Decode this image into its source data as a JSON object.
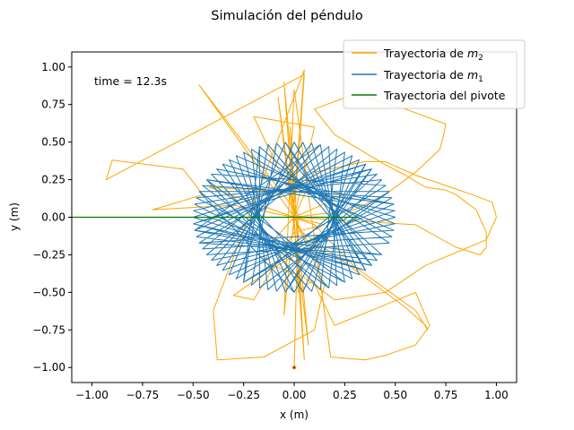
{
  "chart_data": {
    "type": "line",
    "title": "Simulación del péndulo",
    "xlabel": "x (m)",
    "ylabel": "y (m)",
    "xlim": [
      -1.1,
      1.1
    ],
    "ylim": [
      -1.1,
      1.1
    ],
    "xticks": [
      -1.0,
      -0.75,
      -0.5,
      -0.25,
      0.0,
      0.25,
      0.5,
      0.75,
      1.0
    ],
    "yticks": [
      -1.0,
      -0.75,
      -0.5,
      -0.25,
      0.0,
      0.25,
      0.5,
      0.75,
      1.0
    ],
    "xtick_labels": [
      "−1.00",
      "−0.75",
      "−0.50",
      "−0.25",
      "0.00",
      "0.25",
      "0.50",
      "0.75",
      "1.00"
    ],
    "ytick_labels": [
      "−1.00",
      "−0.75",
      "−0.50",
      "−0.25",
      "0.00",
      "0.25",
      "0.50",
      "0.75",
      "1.00"
    ],
    "grid": false,
    "legend_position": "top-right",
    "annotation": "time = 12.3s",
    "colors": {
      "m2": "#ffa500",
      "m1": "#1f77b4",
      "pivot": "#008000",
      "marker": "#ff0000"
    },
    "series": [
      {
        "name": "Trayectoria de m2",
        "legend_base": "Trayectoria de ",
        "legend_math": "m",
        "legend_sub": "2",
        "color": "#ffa500",
        "x": [
          0.0,
          0.02,
          -0.47,
          0.0,
          0.05,
          -0.93,
          -0.9,
          -0.55,
          -0.45,
          -0.7,
          -0.3,
          0.0,
          0.1,
          -0.2,
          0.0,
          0.05,
          -0.4,
          -0.38,
          -0.15,
          0.1,
          0.15,
          0.0,
          0.0,
          0.3,
          0.45,
          0.6,
          0.72,
          0.74,
          0.75,
          0.55,
          0.3,
          0.1,
          0.2,
          0.45,
          0.55,
          0.65,
          0.75,
          0.8,
          0.9,
          0.95,
          0.95,
          0.92,
          0.8,
          0.6,
          0.0,
          -0.1,
          -0.15,
          0.05,
          0.2,
          0.45,
          0.65,
          0.95,
          1.0,
          0.98,
          0.88,
          0.6,
          0.45,
          0.35,
          0.1,
          0.0,
          0.04,
          0.25,
          0.4,
          0.55,
          0.65,
          0.66,
          0.6,
          0.3,
          0.1,
          0.0,
          0.08,
          -0.12,
          -0.3,
          -0.2,
          0.0,
          0.15,
          0.0,
          0.25,
          -0.42,
          0.0,
          -0.05,
          0.0,
          0.18,
          0.35,
          0.45,
          0.6,
          0.67,
          0.6,
          0.42,
          0.2,
          0.09,
          0.02,
          0.0,
          -0.02,
          0.0,
          0.05,
          -0.05,
          0.07,
          -0.08,
          0.0,
          0.0
        ],
        "y": [
          -1.0,
          0.02,
          0.88,
          0.0,
          0.95,
          0.25,
          0.38,
          0.32,
          0.15,
          0.05,
          0.08,
          0.0,
          0.6,
          0.67,
          0.1,
          0.98,
          -0.62,
          -0.95,
          -0.93,
          -0.75,
          -0.45,
          0.0,
          0.0,
          0.05,
          0.15,
          0.3,
          0.45,
          0.55,
          0.62,
          0.72,
          0.82,
          0.72,
          0.55,
          0.35,
          0.28,
          0.2,
          0.18,
          0.15,
          0.05,
          -0.1,
          -0.2,
          -0.25,
          -0.2,
          -0.05,
          0.0,
          -0.15,
          -0.3,
          -0.4,
          -0.55,
          -0.5,
          -0.32,
          -0.15,
          0.0,
          0.1,
          0.15,
          0.28,
          0.37,
          0.37,
          0.3,
          0.0,
          -0.1,
          -0.3,
          -0.45,
          -0.6,
          -0.72,
          -0.75,
          -0.62,
          -0.33,
          -0.05,
          0.0,
          -0.2,
          -0.35,
          -0.52,
          -0.55,
          -0.1,
          -0.05,
          0.0,
          0.15,
          0.2,
          0.0,
          -0.65,
          0.85,
          -0.93,
          -0.95,
          -0.92,
          -0.85,
          -0.72,
          -0.5,
          -0.6,
          -0.72,
          -0.42,
          -0.5,
          0.0,
          0.6,
          0.2,
          -0.95,
          0.9,
          -0.85,
          0.8,
          0.0,
          0.0
        ]
      },
      {
        "name": "Trayectoria de m1",
        "legend_base": "Trayectoria de ",
        "legend_math": "m",
        "legend_sub": "1",
        "color": "#1f77b4",
        "ellipse_rx": 0.5,
        "ellipse_ry": 0.5,
        "angles_deg": [
          -90,
          160,
          20,
          250,
          110,
          330,
          200,
          60,
          290,
          140,
          10,
          230,
          95,
          315,
          185,
          45,
          265,
          125,
          355,
          215,
          75,
          300,
          170,
          35,
          245,
          100,
          325,
          195,
          55,
          280,
          150,
          5,
          225,
          85,
          310,
          175,
          40,
          260,
          120,
          345,
          205,
          70,
          295,
          155,
          15,
          240,
          105,
          320,
          190,
          50,
          275,
          135,
          0,
          220,
          80,
          305,
          165,
          30,
          255,
          115,
          340,
          210,
          65,
          285,
          145,
          25,
          235,
          90,
          315,
          180,
          45,
          270,
          130,
          350,
          200,
          60,
          290,
          160,
          20,
          240,
          110,
          330,
          190,
          75,
          300,
          150,
          10,
          230,
          95,
          320,
          185,
          40,
          265,
          125,
          355
        ]
      },
      {
        "name": "Trayectoria del pivote",
        "legend_label": "Trayectoria del pivote",
        "color": "#008000",
        "x": [
          -1.1,
          0.32
        ],
        "y": [
          0.0,
          0.0
        ]
      }
    ],
    "marker_point": {
      "x": 0.0,
      "y": -1.0
    }
  }
}
